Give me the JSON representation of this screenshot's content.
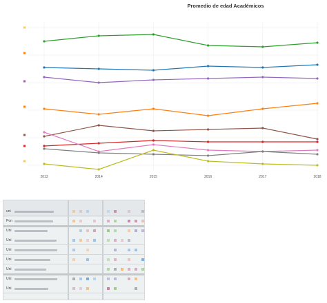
{
  "chart_data": {
    "type": "line",
    "title": "Promedio de edad Académicos",
    "xlabel": "",
    "ylabel": "",
    "categories": [
      "2013",
      "2014",
      "2015",
      "2016",
      "2017",
      "2018"
    ],
    "ylim": [
      0,
      100
    ],
    "grid": true,
    "legend": "none",
    "series": [
      {
        "color": "#2ca02c",
        "values": [
          90,
          94,
          95,
          87,
          86,
          89
        ]
      },
      {
        "color": "#1f77b4",
        "values": [
          71,
          70,
          69,
          72,
          71,
          73
        ]
      },
      {
        "color": "#9467bd",
        "values": [
          64,
          60,
          62,
          63,
          64,
          63
        ]
      },
      {
        "color": "#ff7f0e",
        "values": [
          41,
          37,
          41,
          36,
          41,
          45
        ]
      },
      {
        "color": "#8c564b",
        "values": [
          21,
          29,
          25,
          26,
          27,
          19
        ]
      },
      {
        "color": "#d62728",
        "values": [
          14,
          16,
          18,
          17,
          17,
          17
        ]
      },
      {
        "color": "#e377c2",
        "values": [
          24,
          10,
          15,
          11,
          10,
          11
        ]
      },
      {
        "color": "#7f7f7f",
        "values": [
          12,
          9,
          8,
          7,
          10,
          8
        ]
      },
      {
        "color": "#bcbd22",
        "values": [
          1,
          -3,
          11,
          3,
          1,
          0
        ]
      }
    ]
  },
  "table": {
    "row_labels": [
      "uni",
      "Pon",
      "Uni",
      "Uni",
      "Uni",
      "Uni",
      "Uni",
      "Uni",
      "Uni"
    ]
  },
  "colors": {
    "table_background": "#eef1f2",
    "table_header": "#e4e8ea",
    "grid": "#ececec"
  }
}
